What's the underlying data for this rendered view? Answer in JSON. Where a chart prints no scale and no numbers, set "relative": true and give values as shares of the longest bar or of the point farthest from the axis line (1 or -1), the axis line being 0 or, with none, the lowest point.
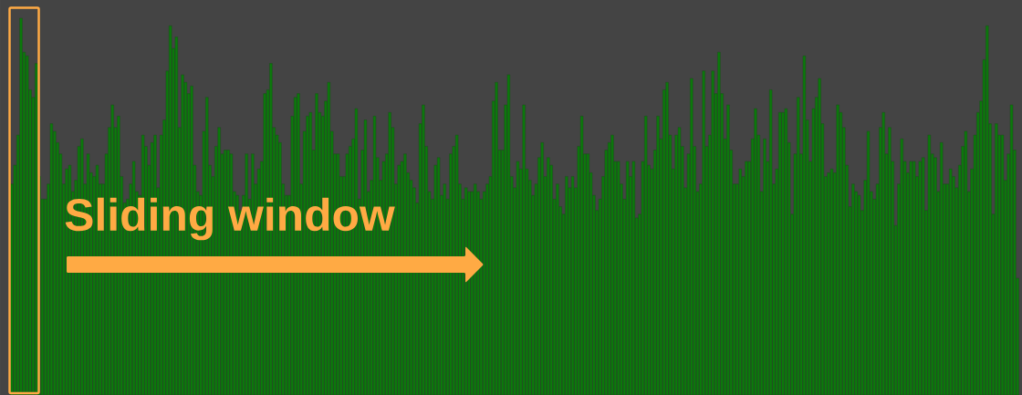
{
  "chart_data": {
    "type": "bar",
    "relative": true,
    "color": "#0b7b0b",
    "annotations": [
      "Sliding window"
    ],
    "categories": [
      null,
      null,
      null,
      null,
      null,
      null,
      null,
      null,
      null,
      null,
      null,
      null,
      null,
      null,
      null,
      null,
      null,
      null,
      null,
      null,
      null,
      null,
      null,
      null,
      null,
      null,
      null,
      null,
      null,
      null,
      null,
      null,
      null,
      null,
      null,
      null,
      null,
      null,
      null,
      null,
      null,
      null,
      null,
      null,
      null,
      null,
      null,
      null,
      null,
      null,
      null,
      null,
      null,
      null,
      null,
      null,
      null,
      null,
      null,
      null,
      null,
      null,
      null,
      null,
      null,
      null,
      null,
      null,
      null,
      null,
      null,
      null,
      null,
      null,
      null,
      null,
      null,
      null,
      null,
      null,
      null,
      null,
      null,
      null,
      null,
      null,
      null,
      null,
      null,
      null,
      null,
      null,
      null,
      null,
      null,
      null,
      null,
      null,
      null,
      null,
      null,
      null,
      null,
      null,
      null,
      null,
      null,
      null,
      null,
      null,
      null,
      null,
      null,
      null,
      null,
      null,
      null,
      null,
      null,
      null,
      null,
      null,
      null,
      null,
      null,
      null,
      null,
      null,
      null,
      null,
      null,
      null,
      null,
      null,
      null,
      null,
      null,
      null,
      null,
      null,
      null,
      null,
      null,
      null,
      null,
      null,
      null,
      null,
      null,
      null,
      null,
      null,
      null,
      null,
      null,
      null,
      null,
      null,
      null,
      null,
      null,
      null,
      null,
      null,
      null,
      null,
      null,
      null,
      null,
      null,
      null,
      null,
      null,
      null,
      null,
      null,
      null,
      null,
      null,
      null,
      null,
      null,
      null,
      null,
      null,
      null,
      null,
      null,
      null,
      null,
      null,
      null,
      null,
      null,
      null,
      null,
      null,
      null,
      null,
      null,
      null,
      null,
      null,
      null,
      null,
      null,
      null,
      null,
      null,
      null,
      null,
      null,
      null,
      null,
      null,
      null,
      null,
      null,
      null,
      null,
      null,
      null,
      null,
      null,
      null,
      null,
      null,
      null,
      null,
      null,
      null,
      null,
      null,
      null,
      null,
      null,
      null,
      null,
      null,
      null,
      null,
      null,
      null,
      null,
      null,
      null,
      null,
      null,
      null,
      null,
      null,
      null,
      null,
      null,
      null,
      null,
      null,
      null,
      null,
      null,
      null,
      null,
      null,
      null,
      null,
      null,
      null,
      null,
      null,
      null,
      null,
      null,
      null,
      null,
      null,
      null,
      null,
      null,
      null,
      null,
      null,
      null,
      null,
      null,
      null,
      null,
      null,
      null,
      null,
      null,
      null,
      null,
      null,
      null,
      null,
      null,
      null,
      null,
      null,
      null,
      null,
      null,
      null,
      null,
      null,
      null,
      null,
      null,
      null,
      null,
      null,
      null,
      null,
      null,
      null,
      null,
      null,
      null,
      null,
      null,
      null,
      null,
      null,
      null,
      null,
      null,
      null,
      null,
      null,
      null,
      null
    ],
    "values": [
      0.56,
      0.61,
      0.69,
      1,
      0.91,
      0.9,
      0.81,
      0.79,
      0.88,
      0.58,
      0.52,
      0.52,
      0.56,
      0.72,
      0.7,
      0.67,
      0.64,
      0.56,
      0.6,
      0.61,
      0.54,
      0.57,
      0.66,
      0.68,
      0.56,
      0.64,
      0.59,
      0.58,
      0.61,
      0.56,
      0.56,
      0.64,
      0.71,
      0.77,
      0.71,
      0.74,
      0.58,
      0.51,
      0.52,
      0.56,
      0.62,
      0.54,
      0.53,
      0.69,
      0.66,
      0.61,
      0.67,
      0.69,
      0.55,
      0.69,
      0.73,
      0.86,
      0.98,
      0.92,
      0.95,
      0.71,
      0.85,
      0.83,
      0.8,
      0.82,
      0.61,
      0.54,
      0.53,
      0.7,
      0.79,
      0.61,
      0.58,
      0.66,
      0.71,
      0.64,
      0.65,
      0.65,
      0.64,
      0.54,
      0.53,
      0.49,
      0.53,
      0.64,
      0.52,
      0.64,
      0.56,
      0.6,
      0.62,
      0.8,
      0.81,
      0.88,
      0.71,
      0.69,
      0.67,
      0.56,
      0.53,
      0.53,
      0.74,
      0.79,
      0.8,
      0.56,
      0.7,
      0.74,
      0.75,
      0.65,
      0.8,
      0.75,
      0.74,
      0.78,
      0.83,
      0.7,
      0.64,
      0.64,
      0.58,
      0.58,
      0.64,
      0.66,
      0.68,
      0.76,
      0.52,
      0.65,
      0.73,
      0.54,
      0.57,
      0.74,
      0.63,
      0.57,
      0.62,
      0.64,
      0.75,
      0.71,
      0.56,
      0.61,
      0.62,
      0.64,
      0.59,
      0.57,
      0.55,
      0.51,
      0.72,
      0.77,
      0.66,
      0.54,
      0.52,
      0.61,
      0.63,
      0.53,
      0.56,
      0.52,
      0.64,
      0.66,
      0.69,
      0.56,
      0.52,
      0.55,
      0.54,
      0.54,
      0.56,
      0.54,
      0.52,
      0.54,
      0.56,
      0.58,
      0.78,
      0.83,
      0.65,
      0.65,
      0.77,
      0.85,
      0.58,
      0.55,
      0.62,
      0.6,
      0.77,
      0.6,
      0.57,
      0.53,
      0.56,
      0.63,
      0.67,
      0.58,
      0.63,
      0.61,
      0.52,
      0.56,
      0.5,
      0.48,
      0.58,
      0.55,
      0.58,
      0.55,
      0.66,
      0.74,
      0.64,
      0.64,
      0.59,
      0.53,
      0.49,
      0.52,
      0.58,
      0.65,
      0.67,
      0.69,
      0.62,
      0.62,
      0.56,
      0.52,
      0.62,
      0.58,
      0.62,
      0.47,
      0.48,
      0.62,
      0.74,
      0.61,
      0.6,
      0.65,
      0.74,
      0.68,
      0.81,
      0.83,
      0.69,
      0.6,
      0.69,
      0.71,
      0.66,
      0.55,
      0.64,
      0.84,
      0.66,
      0.54,
      0.56,
      0.86,
      0.66,
      0.69,
      0.86,
      0.8,
      0.91,
      0.8,
      0.68,
      0.77,
      0.65,
      0.56,
      0.56,
      0.6,
      0.58,
      0.62,
      0.62,
      0.68,
      0.76,
      0.69,
      0.54,
      0.68,
      0.62,
      0.81,
      0.56,
      0.6,
      0.75,
      0.75,
      0.76,
      0.67,
      0.48,
      0.64,
      0.79,
      0.64,
      0.9,
      0.73,
      0.62,
      0.76,
      0.79,
      0.84,
      0.72,
      0.58,
      0.59,
      0.6,
      0.59,
      0.77,
      0.75,
      0.71,
      0.61,
      0.5,
      0.56,
      0.54,
      0.53,
      0.49,
      0.57,
      0.7,
      0.54,
      0.52,
      0.56,
      0.71,
      0.75,
      0.64,
      0.71,
      0.62,
      0.45,
      0.56,
      0.68,
      0.62,
      0.59,
      0.62,
      0.62,
      0.58,
      0.62,
      0.63,
      0.49,
      0.69,
      0.64,
      0.63,
      0.54,
      0.67,
      0.56,
      0.56,
      0.6,
      0.58,
      0.55,
      0.61,
      0.66,
      0.7,
      0.54,
      0.6,
      0.69,
      0.75,
      0.78,
      0.89,
      0.98,
      0.72,
      0.48,
      0.72,
      0.69,
      0.69,
      0.57,
      0.64,
      0.77,
      0.65,
      0.31
    ]
  }
}
